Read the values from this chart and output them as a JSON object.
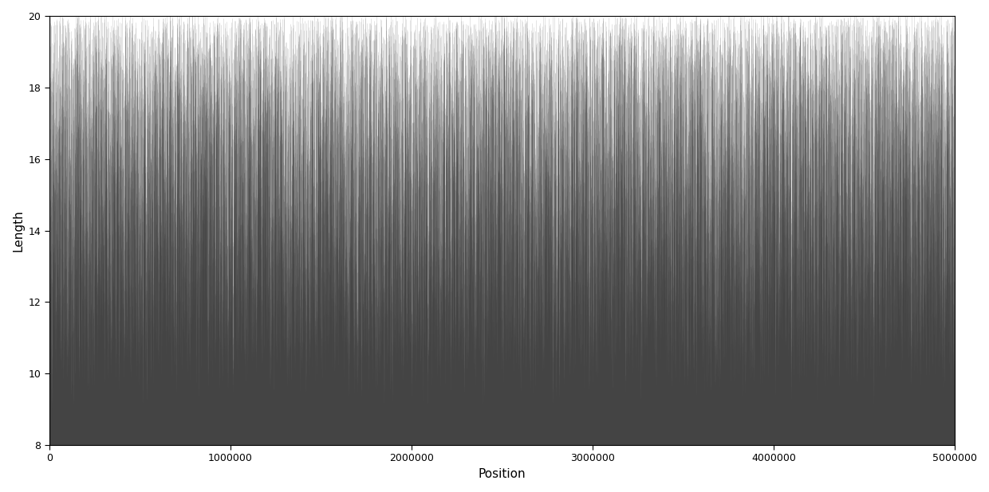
{
  "title": "",
  "xlabel": "Position",
  "ylabel": "Length",
  "xlim": [
    0,
    5000000
  ],
  "ylim": [
    8,
    20
  ],
  "xticks": [
    0,
    1000000,
    2000000,
    3000000,
    4000000,
    5000000
  ],
  "xtick_labels": [
    "0",
    "1000000",
    "2000000",
    "3000000",
    "4000000",
    "5000000"
  ],
  "yticks": [
    8,
    10,
    12,
    14,
    16,
    18,
    20
  ],
  "x_max": 5000000,
  "y_min": 8,
  "y_max": 20,
  "n_vlines": 35000,
  "line_color": "#444444",
  "line_alpha": 0.25,
  "line_width": 0.4,
  "background_color": "#ffffff",
  "figsize": [
    12.4,
    6.18
  ],
  "dpi": 100
}
